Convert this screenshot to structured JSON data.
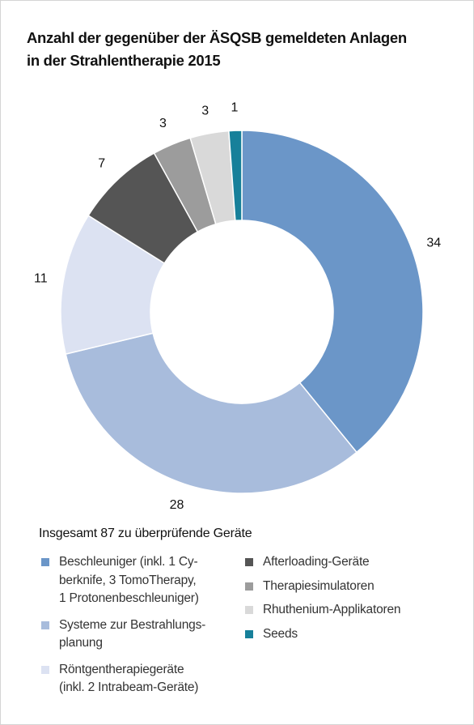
{
  "chart_data": {
    "type": "donut",
    "title": "Anzahl der gegenüber der ÄSQSB gemeldeten Anlagen\nin der Strahlentherapie 2015",
    "note": "Insgesamt 87 zu überprüfende Geräte",
    "categories": [
      "Beschleuniger (inkl. 1 Cy-\nberknife, 3 TomoTherapy,\n1 Protonenbeschleuniger)",
      "Systeme zur Bestrahlungs-\nplanung",
      "Röntgentherapiegeräte\n(inkl. 2 Intrabeam-Geräte)",
      "Afterloading-Geräte",
      "Therapiesimulatoren",
      "Rhuthenium-Applikatoren",
      "Seeds"
    ],
    "values": [
      34,
      28,
      11,
      7,
      3,
      3,
      1
    ],
    "colors": [
      "#6b96c8",
      "#a8bcdc",
      "#dce2f2",
      "#555555",
      "#9c9c9c",
      "#d9d9d9",
      "#17809a"
    ]
  }
}
